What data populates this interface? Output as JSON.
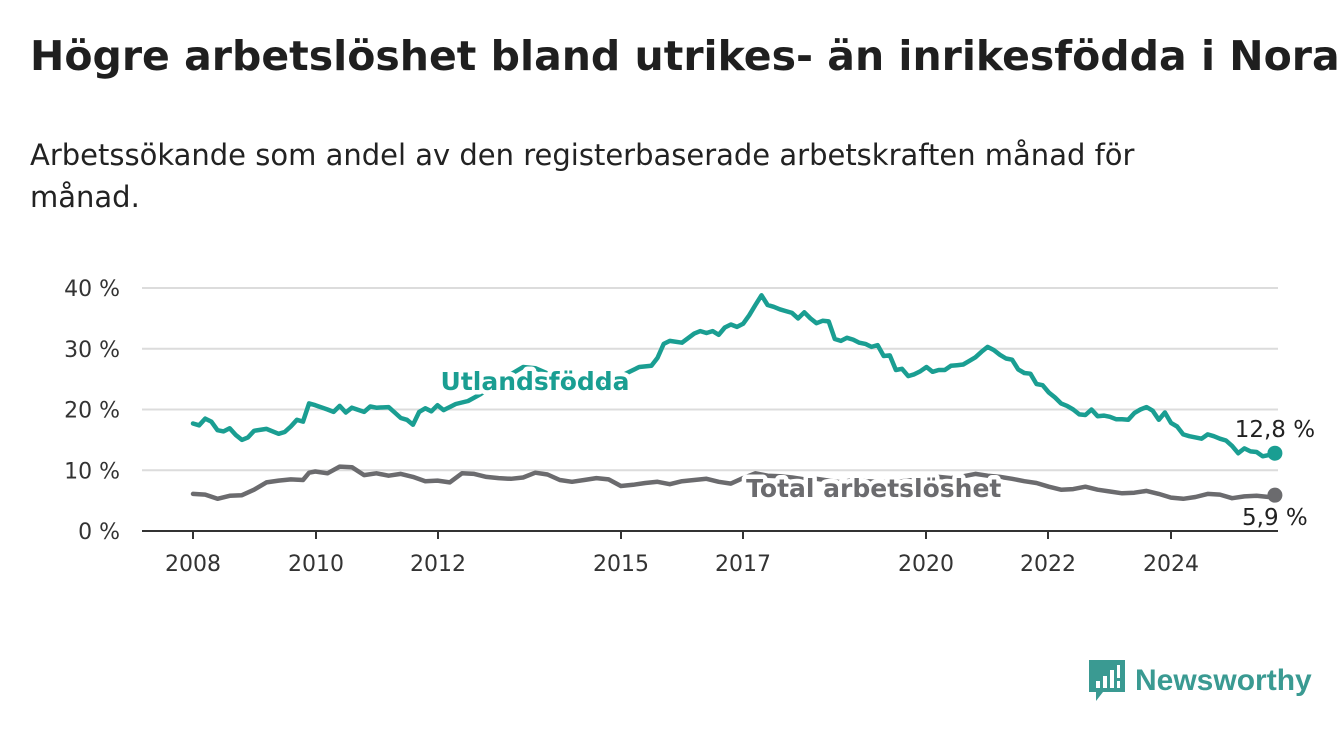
{
  "title": "Högre arbetslöshet bland utrikes- än inrikesfödda i Nora",
  "subtitle": "Arbetssökande som andel av den registerbaserade arbetskraften månad för månad.",
  "brand": {
    "name": "Newsworthy",
    "color": "#3a9a92"
  },
  "chart_data": {
    "type": "line",
    "title": "",
    "xlabel": "",
    "ylabel": "",
    "x_ticks": [
      "2008",
      "2010",
      "2012",
      "2015",
      "2017",
      "2020",
      "2022",
      "2024"
    ],
    "y_ticks": [
      "0 %",
      "10 %",
      "20 %",
      "30 %",
      "40 %"
    ],
    "ylim": [
      0,
      40
    ],
    "xlim": [
      2007.8,
      2025.7
    ],
    "grid": true,
    "series": [
      {
        "name": "Utlandsfödda",
        "color": "#1a9e92",
        "end_label": "12,8 %",
        "points": [
          [
            2008.0,
            17.7
          ],
          [
            2008.1,
            17.4
          ],
          [
            2008.2,
            18.5
          ],
          [
            2008.3,
            18.0
          ],
          [
            2008.4,
            16.6
          ],
          [
            2008.5,
            16.4
          ],
          [
            2008.6,
            16.9
          ],
          [
            2008.7,
            15.8
          ],
          [
            2008.8,
            15.0
          ],
          [
            2008.9,
            15.4
          ],
          [
            2009.0,
            16.5
          ],
          [
            2009.2,
            16.8
          ],
          [
            2009.4,
            16.0
          ],
          [
            2009.5,
            16.3
          ],
          [
            2009.6,
            17.2
          ],
          [
            2009.7,
            18.3
          ],
          [
            2009.8,
            18.0
          ],
          [
            2009.9,
            21.0
          ],
          [
            2010.0,
            20.7
          ],
          [
            2010.2,
            20.0
          ],
          [
            2010.3,
            19.6
          ],
          [
            2010.4,
            20.6
          ],
          [
            2010.5,
            19.5
          ],
          [
            2010.6,
            20.3
          ],
          [
            2010.8,
            19.6
          ],
          [
            2010.9,
            20.5
          ],
          [
            2011.0,
            20.3
          ],
          [
            2011.2,
            20.4
          ],
          [
            2011.3,
            19.5
          ],
          [
            2011.4,
            18.6
          ],
          [
            2011.5,
            18.3
          ],
          [
            2011.6,
            17.5
          ],
          [
            2011.7,
            19.6
          ],
          [
            2011.8,
            20.2
          ],
          [
            2011.9,
            19.7
          ],
          [
            2012.0,
            20.7
          ],
          [
            2012.1,
            19.9
          ],
          [
            2012.3,
            20.9
          ],
          [
            2012.5,
            21.4
          ],
          [
            2012.7,
            22.5
          ],
          [
            2012.9,
            24.0
          ],
          [
            2013.1,
            25.2
          ],
          [
            2013.4,
            27.0
          ],
          [
            2013.6,
            26.8
          ],
          [
            2013.9,
            25.5
          ],
          [
            2014.2,
            24.2
          ],
          [
            2014.5,
            23.5
          ],
          [
            2014.8,
            24.5
          ],
          [
            2015.1,
            26.0
          ],
          [
            2015.3,
            27.0
          ],
          [
            2015.5,
            27.2
          ],
          [
            2015.6,
            28.5
          ],
          [
            2015.7,
            30.8
          ],
          [
            2015.8,
            31.3
          ],
          [
            2016.0,
            31.0
          ],
          [
            2016.2,
            32.5
          ],
          [
            2016.3,
            32.9
          ],
          [
            2016.4,
            32.6
          ],
          [
            2016.5,
            32.9
          ],
          [
            2016.6,
            32.3
          ],
          [
            2016.7,
            33.5
          ],
          [
            2016.8,
            34.0
          ],
          [
            2016.9,
            33.6
          ],
          [
            2017.0,
            34.1
          ],
          [
            2017.1,
            35.5
          ],
          [
            2017.2,
            37.2
          ],
          [
            2017.3,
            38.8
          ],
          [
            2017.4,
            37.2
          ],
          [
            2017.5,
            36.9
          ],
          [
            2017.6,
            36.5
          ],
          [
            2017.7,
            36.2
          ],
          [
            2017.8,
            35.9
          ],
          [
            2017.9,
            35.0
          ],
          [
            2018.0,
            36.0
          ],
          [
            2018.1,
            35.0
          ],
          [
            2018.2,
            34.2
          ],
          [
            2018.3,
            34.6
          ],
          [
            2018.4,
            34.5
          ],
          [
            2018.5,
            31.6
          ],
          [
            2018.6,
            31.3
          ],
          [
            2018.7,
            31.8
          ],
          [
            2018.8,
            31.5
          ],
          [
            2018.9,
            31.0
          ],
          [
            2019.0,
            30.8
          ],
          [
            2019.1,
            30.3
          ],
          [
            2019.2,
            30.6
          ],
          [
            2019.3,
            28.8
          ],
          [
            2019.4,
            28.9
          ],
          [
            2019.5,
            26.5
          ],
          [
            2019.6,
            26.7
          ],
          [
            2019.7,
            25.5
          ],
          [
            2019.8,
            25.8
          ],
          [
            2019.9,
            26.3
          ],
          [
            2020.0,
            27.0
          ],
          [
            2020.1,
            26.2
          ],
          [
            2020.2,
            26.5
          ],
          [
            2020.3,
            26.5
          ],
          [
            2020.4,
            27.2
          ],
          [
            2020.5,
            27.3
          ],
          [
            2020.6,
            27.4
          ],
          [
            2020.7,
            28.0
          ],
          [
            2020.8,
            28.6
          ],
          [
            2020.9,
            29.5
          ],
          [
            2021.0,
            30.3
          ],
          [
            2021.1,
            29.8
          ],
          [
            2021.2,
            29.0
          ],
          [
            2021.3,
            28.4
          ],
          [
            2021.4,
            28.2
          ],
          [
            2021.5,
            26.6
          ],
          [
            2021.6,
            26.0
          ],
          [
            2021.7,
            25.9
          ],
          [
            2021.8,
            24.2
          ],
          [
            2021.9,
            24.0
          ],
          [
            2022.0,
            22.8
          ],
          [
            2022.1,
            22.0
          ],
          [
            2022.2,
            21.0
          ],
          [
            2022.3,
            20.6
          ],
          [
            2022.4,
            20.0
          ],
          [
            2022.5,
            19.2
          ],
          [
            2022.6,
            19.1
          ],
          [
            2022.7,
            20.0
          ],
          [
            2022.8,
            18.9
          ],
          [
            2022.9,
            19.0
          ],
          [
            2023.0,
            18.8
          ],
          [
            2023.1,
            18.4
          ],
          [
            2023.2,
            18.4
          ],
          [
            2023.3,
            18.3
          ],
          [
            2023.4,
            19.4
          ],
          [
            2023.5,
            20.0
          ],
          [
            2023.6,
            20.4
          ],
          [
            2023.7,
            19.8
          ],
          [
            2023.8,
            18.3
          ],
          [
            2023.9,
            19.5
          ],
          [
            2024.0,
            17.8
          ],
          [
            2024.1,
            17.2
          ],
          [
            2024.2,
            15.9
          ],
          [
            2024.3,
            15.6
          ],
          [
            2024.4,
            15.4
          ],
          [
            2024.5,
            15.2
          ],
          [
            2024.6,
            15.9
          ],
          [
            2024.7,
            15.6
          ],
          [
            2024.8,
            15.2
          ],
          [
            2024.9,
            14.9
          ],
          [
            2025.0,
            14.0
          ],
          [
            2025.1,
            12.8
          ],
          [
            2025.2,
            13.6
          ],
          [
            2025.3,
            13.1
          ],
          [
            2025.4,
            13.0
          ],
          [
            2025.5,
            12.3
          ],
          [
            2025.6,
            12.5
          ],
          [
            2025.7,
            12.8
          ]
        ]
      },
      {
        "name": "Total arbetslöshet",
        "color": "#6b6b6e",
        "end_label": "5,9 %",
        "points": [
          [
            2008.0,
            6.1
          ],
          [
            2008.2,
            6.0
          ],
          [
            2008.4,
            5.3
          ],
          [
            2008.6,
            5.8
          ],
          [
            2008.8,
            5.9
          ],
          [
            2009.0,
            6.8
          ],
          [
            2009.2,
            8.0
          ],
          [
            2009.4,
            8.3
          ],
          [
            2009.6,
            8.5
          ],
          [
            2009.8,
            8.4
          ],
          [
            2009.9,
            9.6
          ],
          [
            2010.0,
            9.8
          ],
          [
            2010.2,
            9.5
          ],
          [
            2010.4,
            10.6
          ],
          [
            2010.6,
            10.5
          ],
          [
            2010.8,
            9.2
          ],
          [
            2011.0,
            9.5
          ],
          [
            2011.2,
            9.1
          ],
          [
            2011.4,
            9.4
          ],
          [
            2011.6,
            8.9
          ],
          [
            2011.8,
            8.2
          ],
          [
            2012.0,
            8.3
          ],
          [
            2012.2,
            8.0
          ],
          [
            2012.4,
            9.5
          ],
          [
            2012.6,
            9.4
          ],
          [
            2012.8,
            8.9
          ],
          [
            2013.0,
            8.7
          ],
          [
            2013.2,
            8.6
          ],
          [
            2013.4,
            8.8
          ],
          [
            2013.6,
            9.6
          ],
          [
            2013.8,
            9.3
          ],
          [
            2014.0,
            8.4
          ],
          [
            2014.2,
            8.1
          ],
          [
            2014.4,
            8.4
          ],
          [
            2014.6,
            8.7
          ],
          [
            2014.8,
            8.5
          ],
          [
            2015.0,
            7.4
          ],
          [
            2015.2,
            7.6
          ],
          [
            2015.4,
            7.9
          ],
          [
            2015.6,
            8.1
          ],
          [
            2015.8,
            7.7
          ],
          [
            2016.0,
            8.2
          ],
          [
            2016.2,
            8.4
          ],
          [
            2016.4,
            8.6
          ],
          [
            2016.6,
            8.1
          ],
          [
            2016.8,
            7.8
          ],
          [
            2017.0,
            8.7
          ],
          [
            2017.2,
            9.5
          ],
          [
            2017.4,
            9.1
          ],
          [
            2017.6,
            9.0
          ],
          [
            2017.8,
            8.8
          ],
          [
            2018.0,
            8.5
          ],
          [
            2018.2,
            8.6
          ],
          [
            2018.4,
            8.3
          ],
          [
            2018.6,
            8.0
          ],
          [
            2018.8,
            8.4
          ],
          [
            2019.0,
            8.2
          ],
          [
            2019.2,
            8.1
          ],
          [
            2019.4,
            8.0
          ],
          [
            2019.6,
            8.2
          ],
          [
            2019.8,
            8.4
          ],
          [
            2020.0,
            8.6
          ],
          [
            2020.2,
            8.9
          ],
          [
            2020.4,
            8.7
          ],
          [
            2020.6,
            9.0
          ],
          [
            2020.8,
            9.4
          ],
          [
            2021.0,
            9.1
          ],
          [
            2021.2,
            8.9
          ],
          [
            2021.4,
            8.6
          ],
          [
            2021.6,
            8.2
          ],
          [
            2021.8,
            7.9
          ],
          [
            2022.0,
            7.3
          ],
          [
            2022.2,
            6.8
          ],
          [
            2022.4,
            6.9
          ],
          [
            2022.6,
            7.3
          ],
          [
            2022.8,
            6.8
          ],
          [
            2023.0,
            6.5
          ],
          [
            2023.2,
            6.2
          ],
          [
            2023.4,
            6.3
          ],
          [
            2023.6,
            6.6
          ],
          [
            2023.8,
            6.1
          ],
          [
            2024.0,
            5.5
          ],
          [
            2024.2,
            5.3
          ],
          [
            2024.4,
            5.6
          ],
          [
            2024.6,
            6.1
          ],
          [
            2024.8,
            6.0
          ],
          [
            2025.0,
            5.4
          ],
          [
            2025.2,
            5.7
          ],
          [
            2025.4,
            5.8
          ],
          [
            2025.6,
            5.6
          ],
          [
            2025.7,
            5.9
          ]
        ]
      }
    ]
  }
}
